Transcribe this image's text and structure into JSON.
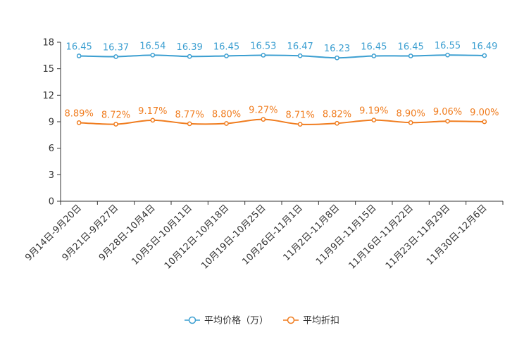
{
  "chart_data": {
    "type": "line",
    "title": "",
    "xlabel": "",
    "ylabel": "",
    "ylim": [
      0,
      18
    ],
    "yticks": [
      0,
      3,
      6,
      9,
      12,
      15,
      18
    ],
    "categories": [
      "9月14日-9月20日",
      "9月21日-9月27日",
      "9月28日-10月4日",
      "10月5日-10月11日",
      "10月12日-10月18日",
      "10月19日-10月25日",
      "10月26日-11月1日",
      "11月2日-11月8日",
      "11月9日-11月15日",
      "11月16日-11月22日",
      "11月23日-11月29日",
      "11月30日-12月6日"
    ],
    "series": [
      {
        "name": "平均价格（万）",
        "color": "#3c9fd1",
        "values": [
          16.45,
          16.37,
          16.54,
          16.39,
          16.45,
          16.53,
          16.47,
          16.23,
          16.45,
          16.45,
          16.55,
          16.49
        ],
        "labels": [
          "16.45",
          "16.37",
          "16.54",
          "16.39",
          "16.45",
          "16.53",
          "16.47",
          "16.23",
          "16.45",
          "16.45",
          "16.55",
          "16.49"
        ]
      },
      {
        "name": "平均折扣",
        "color": "#f07c1e",
        "values": [
          8.89,
          8.72,
          9.17,
          8.77,
          8.8,
          9.27,
          8.71,
          8.82,
          9.19,
          8.9,
          9.06,
          9.0
        ],
        "labels": [
          "8.89%",
          "8.72%",
          "9.17%",
          "8.77%",
          "8.80%",
          "9.27%",
          "8.71%",
          "8.82%",
          "9.19%",
          "8.90%",
          "9.06%",
          "9.00%"
        ]
      }
    ],
    "legend_position": "bottom-center"
  }
}
